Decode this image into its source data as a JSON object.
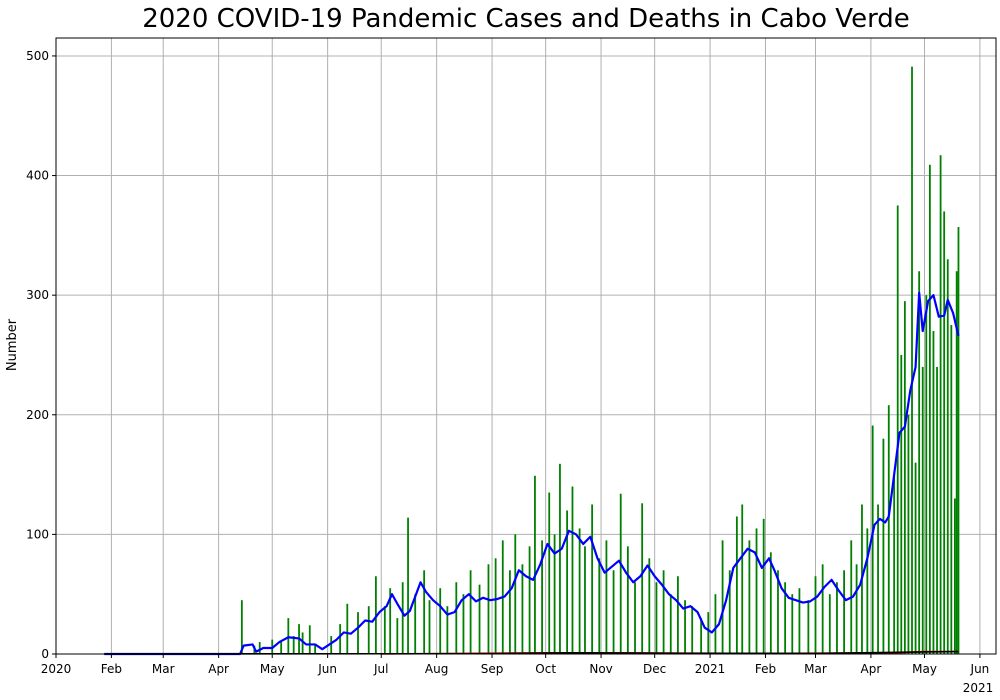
{
  "chart_data": {
    "type": "bar",
    "title": "2020 COVID-19 Pandemic Cases and Deaths in Cabo Verde",
    "xlabel": "",
    "ylabel": "Number",
    "x_range": [
      "2020-01-01",
      "2021-06-10"
    ],
    "ylim": [
      0,
      515
    ],
    "yticks": [
      0,
      100,
      200,
      300,
      400,
      500
    ],
    "xticks": [
      {
        "date": "2020-01-01",
        "label": "2020"
      },
      {
        "date": "2020-02-01",
        "label": "Feb"
      },
      {
        "date": "2020-03-01",
        "label": "Mar"
      },
      {
        "date": "2020-04-01",
        "label": "Apr"
      },
      {
        "date": "2020-05-01",
        "label": "May"
      },
      {
        "date": "2020-06-01",
        "label": "Jun"
      },
      {
        "date": "2020-07-01",
        "label": "Jul"
      },
      {
        "date": "2020-08-01",
        "label": "Aug"
      },
      {
        "date": "2020-09-01",
        "label": "Sep"
      },
      {
        "date": "2020-10-01",
        "label": "Oct"
      },
      {
        "date": "2020-11-01",
        "label": "Nov"
      },
      {
        "date": "2020-12-01",
        "label": "Dec"
      },
      {
        "date": "2021-01-01",
        "label": "2021"
      },
      {
        "date": "2021-02-01",
        "label": "Feb"
      },
      {
        "date": "2021-03-01",
        "label": "Mar"
      },
      {
        "date": "2021-04-01",
        "label": "Apr"
      },
      {
        "date": "2021-05-01",
        "label": "May"
      },
      {
        "date": "2021-06-01",
        "label": "Jun"
      }
    ],
    "x_offset_label": "2021",
    "grid": true,
    "colors": {
      "cases": "#008000",
      "average": "#0000ff",
      "deaths": "#ff0000",
      "deaths_average": "#000000"
    },
    "series": [
      {
        "type": "bar",
        "color": "#008000",
        "points": [
          [
            "2020-04-14",
            45
          ],
          [
            "2020-04-21",
            7
          ],
          [
            "2020-04-24",
            10
          ],
          [
            "2020-05-01",
            12
          ],
          [
            "2020-05-06",
            10
          ],
          [
            "2020-05-10",
            30
          ],
          [
            "2020-05-13",
            15
          ],
          [
            "2020-05-16",
            25
          ],
          [
            "2020-05-18",
            18
          ],
          [
            "2020-05-22",
            24
          ],
          [
            "2020-05-25",
            8
          ],
          [
            "2020-06-03",
            15
          ],
          [
            "2020-06-08",
            25
          ],
          [
            "2020-06-12",
            42
          ],
          [
            "2020-06-18",
            35
          ],
          [
            "2020-06-24",
            40
          ],
          [
            "2020-06-28",
            65
          ],
          [
            "2020-07-03",
            40
          ],
          [
            "2020-07-06",
            55
          ],
          [
            "2020-07-10",
            30
          ],
          [
            "2020-07-13",
            60
          ],
          [
            "2020-07-16",
            114
          ],
          [
            "2020-07-20",
            50
          ],
          [
            "2020-07-25",
            70
          ],
          [
            "2020-07-28",
            45
          ],
          [
            "2020-08-03",
            55
          ],
          [
            "2020-08-07",
            40
          ],
          [
            "2020-08-12",
            60
          ],
          [
            "2020-08-16",
            50
          ],
          [
            "2020-08-20",
            70
          ],
          [
            "2020-08-25",
            58
          ],
          [
            "2020-08-30",
            75
          ],
          [
            "2020-09-03",
            80
          ],
          [
            "2020-09-07",
            95
          ],
          [
            "2020-09-11",
            70
          ],
          [
            "2020-09-14",
            100
          ],
          [
            "2020-09-18",
            75
          ],
          [
            "2020-09-22",
            90
          ],
          [
            "2020-09-25",
            149
          ],
          [
            "2020-09-29",
            95
          ],
          [
            "2020-10-03",
            135
          ],
          [
            "2020-10-06",
            100
          ],
          [
            "2020-10-09",
            159
          ],
          [
            "2020-10-13",
            120
          ],
          [
            "2020-10-16",
            140
          ],
          [
            "2020-10-20",
            105
          ],
          [
            "2020-10-23",
            90
          ],
          [
            "2020-10-27",
            125
          ],
          [
            "2020-10-31",
            80
          ],
          [
            "2020-11-04",
            95
          ],
          [
            "2020-11-08",
            70
          ],
          [
            "2020-11-12",
            134
          ],
          [
            "2020-11-16",
            90
          ],
          [
            "2020-11-20",
            60
          ],
          [
            "2020-11-24",
            126
          ],
          [
            "2020-11-28",
            80
          ],
          [
            "2020-12-02",
            60
          ],
          [
            "2020-12-06",
            70
          ],
          [
            "2020-12-10",
            50
          ],
          [
            "2020-12-14",
            65
          ],
          [
            "2020-12-18",
            45
          ],
          [
            "2020-12-22",
            40
          ],
          [
            "2020-12-27",
            30
          ],
          [
            "2020-12-31",
            35
          ],
          [
            "2021-01-04",
            50
          ],
          [
            "2021-01-08",
            95
          ],
          [
            "2021-01-12",
            70
          ],
          [
            "2021-01-16",
            115
          ],
          [
            "2021-01-19",
            125
          ],
          [
            "2021-01-23",
            95
          ],
          [
            "2021-01-27",
            105
          ],
          [
            "2021-01-31",
            113
          ],
          [
            "2021-02-04",
            85
          ],
          [
            "2021-02-08",
            70
          ],
          [
            "2021-02-12",
            60
          ],
          [
            "2021-02-16",
            50
          ],
          [
            "2021-02-20",
            55
          ],
          [
            "2021-02-25",
            45
          ],
          [
            "2021-03-01",
            65
          ],
          [
            "2021-03-05",
            75
          ],
          [
            "2021-03-09",
            50
          ],
          [
            "2021-03-13",
            60
          ],
          [
            "2021-03-17",
            70
          ],
          [
            "2021-03-21",
            95
          ],
          [
            "2021-03-24",
            75
          ],
          [
            "2021-03-27",
            125
          ],
          [
            "2021-03-30",
            105
          ],
          [
            "2021-04-02",
            191
          ],
          [
            "2021-04-05",
            125
          ],
          [
            "2021-04-08",
            180
          ],
          [
            "2021-04-11",
            208
          ],
          [
            "2021-04-14",
            150
          ],
          [
            "2021-04-16",
            375
          ],
          [
            "2021-04-18",
            250
          ],
          [
            "2021-04-20",
            295
          ],
          [
            "2021-04-22",
            200
          ],
          [
            "2021-04-24",
            491
          ],
          [
            "2021-04-26",
            160
          ],
          [
            "2021-04-28",
            320
          ],
          [
            "2021-04-30",
            240
          ],
          [
            "2021-05-02",
            300
          ],
          [
            "2021-05-04",
            409
          ],
          [
            "2021-05-06",
            270
          ],
          [
            "2021-05-08",
            240
          ],
          [
            "2021-05-10",
            417
          ],
          [
            "2021-05-12",
            370
          ],
          [
            "2021-05-14",
            330
          ],
          [
            "2021-05-16",
            275
          ],
          [
            "2021-05-18",
            130
          ],
          [
            "2021-05-19",
            320
          ],
          [
            "2021-05-20",
            357
          ]
        ]
      },
      {
        "type": "line",
        "color": "#0000ff",
        "points": [
          [
            "2020-01-28",
            0
          ],
          [
            "2020-04-13",
            0
          ],
          [
            "2020-04-15",
            7
          ],
          [
            "2020-04-20",
            8
          ],
          [
            "2020-04-22",
            2
          ],
          [
            "2020-04-26",
            5
          ],
          [
            "2020-05-01",
            5
          ],
          [
            "2020-05-05",
            10
          ],
          [
            "2020-05-10",
            14
          ],
          [
            "2020-05-16",
            13
          ],
          [
            "2020-05-20",
            8
          ],
          [
            "2020-05-25",
            8
          ],
          [
            "2020-05-29",
            4
          ],
          [
            "2020-06-02",
            8
          ],
          [
            "2020-06-06",
            12
          ],
          [
            "2020-06-10",
            18
          ],
          [
            "2020-06-14",
            17
          ],
          [
            "2020-06-18",
            22
          ],
          [
            "2020-06-22",
            28
          ],
          [
            "2020-06-26",
            27
          ],
          [
            "2020-06-30",
            35
          ],
          [
            "2020-07-04",
            40
          ],
          [
            "2020-07-07",
            50
          ],
          [
            "2020-07-10",
            42
          ],
          [
            "2020-07-14",
            32
          ],
          [
            "2020-07-17",
            36
          ],
          [
            "2020-07-20",
            48
          ],
          [
            "2020-07-23",
            60
          ],
          [
            "2020-07-26",
            52
          ],
          [
            "2020-07-30",
            45
          ],
          [
            "2020-08-03",
            40
          ],
          [
            "2020-08-07",
            33
          ],
          [
            "2020-08-11",
            35
          ],
          [
            "2020-08-15",
            45
          ],
          [
            "2020-08-19",
            50
          ],
          [
            "2020-08-23",
            44
          ],
          [
            "2020-08-27",
            47
          ],
          [
            "2020-08-31",
            45
          ],
          [
            "2020-09-04",
            46
          ],
          [
            "2020-09-08",
            48
          ],
          [
            "2020-09-12",
            55
          ],
          [
            "2020-09-16",
            70
          ],
          [
            "2020-09-20",
            65
          ],
          [
            "2020-09-24",
            62
          ],
          [
            "2020-09-28",
            75
          ],
          [
            "2020-10-02",
            92
          ],
          [
            "2020-10-06",
            84
          ],
          [
            "2020-10-10",
            88
          ],
          [
            "2020-10-14",
            103
          ],
          [
            "2020-10-18",
            100
          ],
          [
            "2020-10-22",
            92
          ],
          [
            "2020-10-26",
            98
          ],
          [
            "2020-10-30",
            80
          ],
          [
            "2020-11-03",
            68
          ],
          [
            "2020-11-07",
            73
          ],
          [
            "2020-11-11",
            78
          ],
          [
            "2020-11-15",
            68
          ],
          [
            "2020-11-19",
            60
          ],
          [
            "2020-11-23",
            65
          ],
          [
            "2020-11-27",
            74
          ],
          [
            "2020-12-01",
            65
          ],
          [
            "2020-12-05",
            58
          ],
          [
            "2020-12-09",
            50
          ],
          [
            "2020-12-13",
            45
          ],
          [
            "2020-12-17",
            38
          ],
          [
            "2020-12-21",
            40
          ],
          [
            "2020-12-25",
            35
          ],
          [
            "2020-12-29",
            22
          ],
          [
            "2021-01-02",
            18
          ],
          [
            "2021-01-06",
            25
          ],
          [
            "2021-01-10",
            45
          ],
          [
            "2021-01-14",
            72
          ],
          [
            "2021-01-18",
            80
          ],
          [
            "2021-01-22",
            88
          ],
          [
            "2021-01-26",
            85
          ],
          [
            "2021-01-30",
            72
          ],
          [
            "2021-02-03",
            80
          ],
          [
            "2021-02-06",
            70
          ],
          [
            "2021-02-10",
            55
          ],
          [
            "2021-02-14",
            47
          ],
          [
            "2021-02-18",
            45
          ],
          [
            "2021-02-22",
            43
          ],
          [
            "2021-02-26",
            44
          ],
          [
            "2021-03-02",
            48
          ],
          [
            "2021-03-06",
            56
          ],
          [
            "2021-03-10",
            62
          ],
          [
            "2021-03-14",
            53
          ],
          [
            "2021-03-18",
            45
          ],
          [
            "2021-03-22",
            48
          ],
          [
            "2021-03-26",
            58
          ],
          [
            "2021-03-30",
            80
          ],
          [
            "2021-04-03",
            108
          ],
          [
            "2021-04-06",
            113
          ],
          [
            "2021-04-09",
            110
          ],
          [
            "2021-04-11",
            115
          ],
          [
            "2021-04-14",
            150
          ],
          [
            "2021-04-17",
            185
          ],
          [
            "2021-04-20",
            190
          ],
          [
            "2021-04-23",
            220
          ],
          [
            "2021-04-26",
            240
          ],
          [
            "2021-04-28",
            302
          ],
          [
            "2021-04-30",
            270
          ],
          [
            "2021-05-03",
            295
          ],
          [
            "2021-05-06",
            300
          ],
          [
            "2021-05-09",
            282
          ],
          [
            "2021-05-12",
            283
          ],
          [
            "2021-05-14",
            296
          ],
          [
            "2021-05-17",
            285
          ],
          [
            "2021-05-20",
            266
          ]
        ]
      },
      {
        "type": "line",
        "color": "#ff0000",
        "points": [
          [
            "2020-07-01",
            0
          ],
          [
            "2020-10-01",
            1
          ],
          [
            "2020-10-20",
            1
          ],
          [
            "2021-02-01",
            0.5
          ],
          [
            "2021-04-15",
            1
          ],
          [
            "2021-05-01",
            2
          ],
          [
            "2021-05-20",
            2
          ]
        ]
      },
      {
        "type": "line",
        "color": "#000000",
        "points": [
          [
            "2020-01-28",
            0
          ],
          [
            "2020-09-01",
            0.3
          ],
          [
            "2020-10-15",
            1
          ],
          [
            "2020-12-15",
            0.6
          ],
          [
            "2021-03-01",
            0.5
          ],
          [
            "2021-04-20",
            1.5
          ],
          [
            "2021-05-20",
            2
          ]
        ]
      }
    ]
  }
}
